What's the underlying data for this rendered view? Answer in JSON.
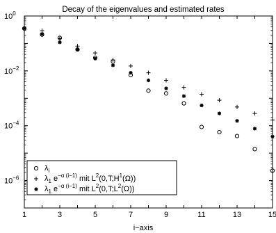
{
  "chart_data": {
    "type": "scatter",
    "title": "Decay of the eigenvalues and estimated rates",
    "xlabel": "i−axis",
    "ylabel": "",
    "xlim": [
      1,
      15
    ],
    "ylim": [
      1e-07,
      1
    ],
    "yscale": "log",
    "grid": false,
    "legend_position": "bottom-left",
    "x_ticks": [
      1,
      3,
      5,
      7,
      9,
      11,
      13,
      15
    ],
    "x_tick_labels": [
      "1",
      "3",
      "5",
      "7",
      "9",
      "11",
      "13",
      "15"
    ],
    "x_minor_ticks": [
      2,
      4,
      6,
      8,
      10,
      12,
      14
    ],
    "y_ticks": [
      1,
      0.01,
      0.0001,
      1e-06
    ],
    "y_tick_bases": [
      "10",
      "10",
      "10",
      "10"
    ],
    "y_tick_exponents": [
      "0",
      "−2",
      "−4",
      "−6"
    ],
    "series": [
      {
        "name": "λ_i",
        "marker": "circle",
        "x": [
          1,
          2,
          3,
          4,
          5,
          6,
          7,
          8,
          9,
          10,
          11,
          12,
          13,
          14,
          15
        ],
        "y": [
          0.35,
          0.21,
          0.16,
          0.06,
          0.03,
          0.022,
          0.007,
          0.0019,
          0.0015,
          0.00065,
          9e-05,
          5.8e-05,
          4.2e-05,
          1.4e-05,
          2.3e-06
        ]
      },
      {
        "name": "λ_1 e^{−α(i−1)} mit L²(0,T;H¹(Ω))",
        "marker": "plus",
        "x": [
          1,
          2,
          3,
          4,
          5,
          6,
          7,
          8,
          9,
          10,
          11,
          12,
          13,
          14,
          15
        ],
        "y": [
          0.35,
          0.29,
          0.15,
          0.08,
          0.045,
          0.025,
          0.015,
          0.0085,
          0.0045,
          0.0025,
          0.0014,
          0.00085,
          0.00048,
          0.00028,
          0.00016
        ]
      },
      {
        "name": "λ_1 e^{−α(i−1)} mit L²(0,T;L²(Ω))",
        "marker": "star",
        "x": [
          1,
          2,
          3,
          4,
          5,
          6,
          7,
          8,
          9,
          10,
          11,
          12,
          13,
          14,
          15
        ],
        "y": [
          0.35,
          0.22,
          0.11,
          0.06,
          0.028,
          0.016,
          0.0085,
          0.0045,
          0.0023,
          0.0012,
          0.00055,
          0.00028,
          0.00015,
          7.8e-05,
          4e-05
        ]
      }
    ],
    "legend_entries": [
      {
        "marker": "circle",
        "base": "λ",
        "base_sub": "i",
        "exp_text": "",
        "suffix": "",
        "space": "",
        "space_sup": "",
        "space_tail": ""
      },
      {
        "marker": "plus",
        "base": "λ",
        "base_sub": "1",
        "exp_text": " e",
        "exp_sup": "−α (i−1)",
        "suffix": " mit L",
        "suffix_sup": "2",
        "space": "(0,T;H",
        "space_sup": "1",
        "space_tail": "(Ω))"
      },
      {
        "marker": "star",
        "base": "λ",
        "base_sub": "1",
        "exp_text": " e",
        "exp_sup": "−α (i−1)",
        "suffix": " mit L",
        "suffix_sup": "2",
        "space": "(0,T;L",
        "space_sup": "2",
        "space_tail": "(Ω))"
      }
    ]
  }
}
